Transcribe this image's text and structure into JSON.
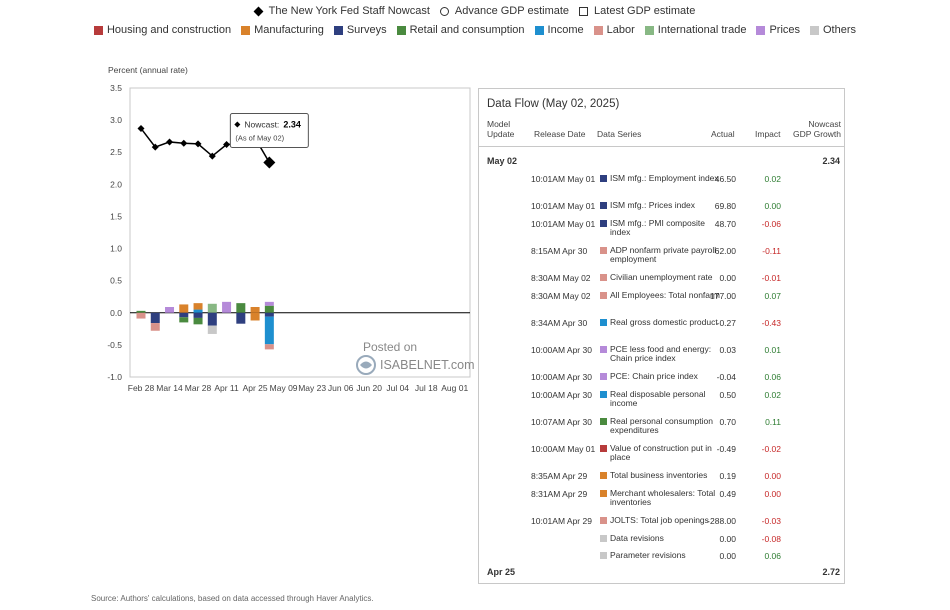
{
  "legend": {
    "nowcast": "The New York Fed Staff Nowcast",
    "advance": "Advance GDP estimate",
    "latest": "Latest GDP estimate",
    "categories": [
      {
        "label": "Housing and construction",
        "color": "#b73b3b"
      },
      {
        "label": "Manufacturing",
        "color": "#d9822b"
      },
      {
        "label": "Surveys",
        "color": "#2e3f7f"
      },
      {
        "label": "Retail and consumption",
        "color": "#4a8a3f"
      },
      {
        "label": "Income",
        "color": "#1e8fcf"
      },
      {
        "label": "Labor",
        "color": "#d9928a"
      },
      {
        "label": "International trade",
        "color": "#88b884"
      },
      {
        "label": "Prices",
        "color": "#b58ad9"
      },
      {
        "label": "Others",
        "color": "#c8c8c8"
      }
    ]
  },
  "tooltip": {
    "label": "Nowcast:",
    "value": "2.34",
    "note": "(As of May 02)"
  },
  "watermark": {
    "line1": "Posted on",
    "line2": "ISABELNET.com"
  },
  "chart_data": {
    "type": "bar",
    "ylabel": "Percent (annual rate)",
    "ylim": [
      -1.0,
      3.5
    ],
    "yticks": [
      "3.5",
      "3.0",
      "2.5",
      "2.0",
      "1.5",
      "1.0",
      "0.5",
      "0.0",
      "-0.5",
      "-1.0"
    ],
    "xticks": [
      "Feb 28",
      "Mar 14",
      "Mar 28",
      "Apr 11",
      "Apr 25",
      "May 09",
      "May 23",
      "Jun 06",
      "Jun 20",
      "Jul 04",
      "Jul 18",
      "Aug 01"
    ],
    "nowcast_line": {
      "name": "The New York Fed Staff Nowcast",
      "week": [
        0,
        1,
        2,
        3,
        4,
        5,
        6,
        7,
        8,
        9
      ],
      "values": [
        2.87,
        2.58,
        2.66,
        2.64,
        2.63,
        2.44,
        2.62,
        2.63,
        2.72,
        2.34
      ]
    },
    "impact_bars": [
      {
        "week": 0,
        "segments": [
          {
            "cat": "Retail and consumption",
            "v": 0.03
          },
          {
            "cat": "Labor",
            "v": -0.09
          }
        ]
      },
      {
        "week": 1,
        "segments": [
          {
            "cat": "Surveys",
            "v": -0.16
          },
          {
            "cat": "Labor",
            "v": -0.12
          }
        ]
      },
      {
        "week": 2,
        "segments": [
          {
            "cat": "Prices",
            "v": 0.09
          }
        ]
      },
      {
        "week": 3,
        "segments": [
          {
            "cat": "Manufacturing",
            "v": 0.13
          },
          {
            "cat": "Surveys",
            "v": -0.07
          },
          {
            "cat": "Retail and consumption",
            "v": -0.08
          }
        ]
      },
      {
        "week": 4,
        "segments": [
          {
            "cat": "Income",
            "v": 0.05
          },
          {
            "cat": "Manufacturing",
            "v": 0.1
          },
          {
            "cat": "Surveys",
            "v": -0.08
          },
          {
            "cat": "Retail and consumption",
            "v": -0.1
          }
        ]
      },
      {
        "week": 5,
        "segments": [
          {
            "cat": "International trade",
            "v": 0.14
          },
          {
            "cat": "Surveys",
            "v": -0.2
          },
          {
            "cat": "Others",
            "v": -0.13
          }
        ]
      },
      {
        "week": 6,
        "segments": [
          {
            "cat": "Prices",
            "v": 0.17
          }
        ]
      },
      {
        "week": 7,
        "segments": [
          {
            "cat": "Retail and consumption",
            "v": 0.15
          },
          {
            "cat": "Surveys",
            "v": -0.17
          }
        ]
      },
      {
        "week": 8,
        "segments": [
          {
            "cat": "Manufacturing",
            "v": 0.09
          },
          {
            "cat": "Manufacturing",
            "v": -0.12
          }
        ]
      },
      {
        "week": 9,
        "segments": [
          {
            "cat": "Retail and consumption",
            "v": 0.11
          },
          {
            "cat": "Prices",
            "v": 0.06
          },
          {
            "cat": "Surveys",
            "v": -0.06
          },
          {
            "cat": "Income",
            "v": -0.43
          },
          {
            "cat": "Labor",
            "v": -0.08
          }
        ]
      }
    ]
  },
  "panel": {
    "title": "Data Flow (May 02, 2025)",
    "headers": {
      "model_update": "Model Update",
      "release_date": "Release Date",
      "data_series": "Data Series",
      "actual": "Actual",
      "impact": "Impact",
      "nowcast": "Nowcast GDP Growth"
    },
    "group1": {
      "label": "May 02",
      "value": "2.34"
    },
    "rows": [
      {
        "time": "10:01AM May 01",
        "series": "ISM mfg.: Employment index",
        "actual": "46.50",
        "impact": "0.02",
        "color": "#2e3f7f",
        "impact_color": "#2e7d32"
      },
      {
        "time": "10:01AM May 01",
        "series": "ISM mfg.: Prices index",
        "actual": "69.80",
        "impact": "0.00",
        "color": "#2e3f7f",
        "impact_color": "#2e7d32"
      },
      {
        "time": "10:01AM May 01",
        "series": "ISM mfg.: PMI composite index",
        "actual": "48.70",
        "impact": "-0.06",
        "color": "#2e3f7f",
        "impact_color": "#c62828"
      },
      {
        "time": "8:15AM Apr 30",
        "series": "ADP nonfarm private payroll employment",
        "actual": "62.00",
        "impact": "-0.11",
        "color": "#d9928a",
        "impact_color": "#c62828"
      },
      {
        "time": "8:30AM May 02",
        "series": "Civilian unemployment rate",
        "actual": "0.00",
        "impact": "-0.01",
        "color": "#d9928a",
        "impact_color": "#c62828"
      },
      {
        "time": "8:30AM May 02",
        "series": "All Employees: Total nonfarm",
        "actual": "177.00",
        "impact": "0.07",
        "color": "#d9928a",
        "impact_color": "#2e7d32"
      },
      {
        "time": "8:34AM Apr 30",
        "series": "Real gross domestic product",
        "actual": "-0.27",
        "impact": "-0.43",
        "color": "#1e8fcf",
        "impact_color": "#c62828"
      },
      {
        "time": "10:00AM Apr 30",
        "series": "PCE less food and energy: Chain price index",
        "actual": "0.03",
        "impact": "0.01",
        "color": "#b58ad9",
        "impact_color": "#2e7d32"
      },
      {
        "time": "10:00AM Apr 30",
        "series": "PCE: Chain price index",
        "actual": "-0.04",
        "impact": "0.06",
        "color": "#b58ad9",
        "impact_color": "#2e7d32"
      },
      {
        "time": "10:00AM Apr 30",
        "series": "Real disposable personal income",
        "actual": "0.50",
        "impact": "0.02",
        "color": "#1e8fcf",
        "impact_color": "#2e7d32"
      },
      {
        "time": "10:07AM Apr 30",
        "series": "Real personal consumption expenditures",
        "actual": "0.70",
        "impact": "0.11",
        "color": "#4a8a3f",
        "impact_color": "#2e7d32"
      },
      {
        "time": "10:00AM May 01",
        "series": "Value of construction put in place",
        "actual": "-0.49",
        "impact": "-0.02",
        "color": "#b73b3b",
        "impact_color": "#c62828"
      },
      {
        "time": "8:35AM Apr 29",
        "series": "Total business inventories",
        "actual": "0.19",
        "impact": "0.00",
        "color": "#d9822b",
        "impact_color": "#c62828"
      },
      {
        "time": "8:31AM Apr 29",
        "series": "Merchant wholesalers: Total inventories",
        "actual": "0.49",
        "impact": "0.00",
        "color": "#d9822b",
        "impact_color": "#c62828"
      },
      {
        "time": "10:01AM Apr 29",
        "series": "JOLTS: Total job openings",
        "actual": "-288.00",
        "impact": "-0.03",
        "color": "#d9928a",
        "impact_color": "#c62828"
      },
      {
        "time": "",
        "series": "Data revisions",
        "actual": "0.00",
        "impact": "-0.08",
        "color": "#c8c8c8",
        "impact_color": "#c62828"
      },
      {
        "time": "",
        "series": "Parameter revisions",
        "actual": "0.00",
        "impact": "0.06",
        "color": "#c8c8c8",
        "impact_color": "#2e7d32"
      }
    ],
    "group2": {
      "label": "Apr 25",
      "value": "2.72"
    }
  },
  "source": "Source: Authors' calculations, based on data accessed through Haver Analytics."
}
